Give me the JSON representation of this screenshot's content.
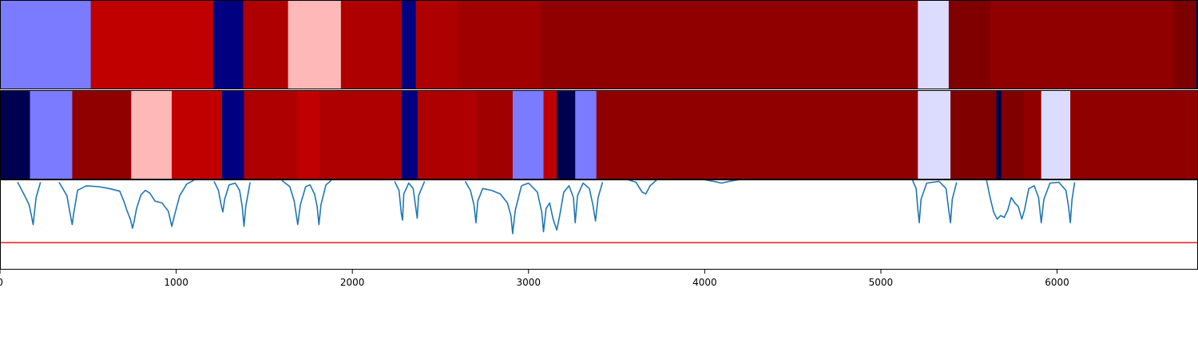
{
  "chart_data": {
    "type": "heatmap",
    "title": "",
    "xlabel": "",
    "ylabel": "",
    "xlim": [
      0,
      6800
    ],
    "x_ticks": [
      0,
      1000,
      2000,
      3000,
      4000,
      5000,
      6000
    ],
    "x_tick_labels": [
      "0",
      "1000",
      "2000",
      "3000",
      "4000",
      "5000",
      "6000"
    ],
    "tracks": [
      {
        "kind": "segments",
        "segments": [
          {
            "start": 0,
            "end": 515,
            "color": "#7b7bff"
          },
          {
            "start": 515,
            "end": 1210,
            "color": "#c00000"
          },
          {
            "start": 1210,
            "end": 1380,
            "color": "#000080"
          },
          {
            "start": 1380,
            "end": 1635,
            "color": "#ae0000"
          },
          {
            "start": 1635,
            "end": 1935,
            "color": "#ffb8b8"
          },
          {
            "start": 1935,
            "end": 2280,
            "color": "#ae0000"
          },
          {
            "start": 2280,
            "end": 2360,
            "color": "#000080"
          },
          {
            "start": 2360,
            "end": 2595,
            "color": "#ae0000"
          },
          {
            "start": 2595,
            "end": 3070,
            "color": "#a00000"
          },
          {
            "start": 3070,
            "end": 5210,
            "color": "#900000"
          },
          {
            "start": 5210,
            "end": 5385,
            "color": "#dcdcff"
          },
          {
            "start": 5385,
            "end": 5620,
            "color": "#800000"
          },
          {
            "start": 5620,
            "end": 6660,
            "color": "#900000"
          },
          {
            "start": 6660,
            "end": 6790,
            "color": "#7c0000"
          },
          {
            "start": 6790,
            "end": 6800,
            "color": "#000060"
          }
        ]
      },
      {
        "kind": "segments",
        "segments": [
          {
            "start": 0,
            "end": 170,
            "color": "#000050"
          },
          {
            "start": 170,
            "end": 410,
            "color": "#7b7bff"
          },
          {
            "start": 410,
            "end": 745,
            "color": "#900000"
          },
          {
            "start": 745,
            "end": 975,
            "color": "#ffb8b8"
          },
          {
            "start": 975,
            "end": 1260,
            "color": "#c00000"
          },
          {
            "start": 1260,
            "end": 1385,
            "color": "#000080"
          },
          {
            "start": 1385,
            "end": 1690,
            "color": "#ae0000"
          },
          {
            "start": 1690,
            "end": 1810,
            "color": "#c00000"
          },
          {
            "start": 1810,
            "end": 2280,
            "color": "#ae0000"
          },
          {
            "start": 2280,
            "end": 2370,
            "color": "#000080"
          },
          {
            "start": 2370,
            "end": 2710,
            "color": "#ae0000"
          },
          {
            "start": 2710,
            "end": 2910,
            "color": "#a00000"
          },
          {
            "start": 2910,
            "end": 3085,
            "color": "#7b7bff"
          },
          {
            "start": 3085,
            "end": 3160,
            "color": "#c00000"
          },
          {
            "start": 3160,
            "end": 3265,
            "color": "#000050"
          },
          {
            "start": 3265,
            "end": 3385,
            "color": "#7b7bff"
          },
          {
            "start": 3385,
            "end": 5210,
            "color": "#900000"
          },
          {
            "start": 5210,
            "end": 5395,
            "color": "#dcdcff"
          },
          {
            "start": 5395,
            "end": 5655,
            "color": "#800000"
          },
          {
            "start": 5655,
            "end": 5685,
            "color": "#000050"
          },
          {
            "start": 5685,
            "end": 5810,
            "color": "#800000"
          },
          {
            "start": 5810,
            "end": 5910,
            "color": "#900000"
          },
          {
            "start": 5910,
            "end": 6075,
            "color": "#dcdcff"
          },
          {
            "start": 6075,
            "end": 6800,
            "color": "#900000"
          }
        ]
      }
    ],
    "signal": {
      "color": "#1f77b4",
      "ylim": [
        0,
        1
      ],
      "baseline": 1.0,
      "dips": [
        {
          "start": 100,
          "end": 230,
          "points": [
            [
              100,
              0.97
            ],
            [
              140,
              0.82
            ],
            [
              165,
              0.72
            ],
            [
              178,
              0.6
            ],
            [
              188,
              0.5
            ],
            [
              195,
              0.62
            ],
            [
              205,
              0.8
            ],
            [
              230,
              0.97
            ]
          ]
        },
        {
          "start": 335,
          "end": 760,
          "points": [
            [
              335,
              0.97
            ],
            [
              380,
              0.82
            ],
            [
              398,
              0.62
            ],
            [
              410,
              0.5
            ],
            [
              418,
              0.62
            ],
            [
              440,
              0.88
            ],
            [
              490,
              0.93
            ],
            [
              560,
              0.92
            ],
            [
              620,
              0.9
            ],
            [
              680,
              0.87
            ],
            [
              705,
              0.75
            ],
            [
              720,
              0.66
            ],
            [
              740,
              0.56
            ],
            [
              752,
              0.46
            ],
            [
              760,
              0.52
            ]
          ]
        },
        {
          "start": 760,
          "end": 1100,
          "points": [
            [
              760,
              0.52
            ],
            [
              775,
              0.68
            ],
            [
              800,
              0.83
            ],
            [
              825,
              0.88
            ],
            [
              850,
              0.85
            ],
            [
              880,
              0.76
            ],
            [
              920,
              0.74
            ],
            [
              955,
              0.65
            ],
            [
              975,
              0.48
            ],
            [
              990,
              0.6
            ],
            [
              1020,
              0.82
            ],
            [
              1060,
              0.95
            ],
            [
              1100,
              0.99
            ]
          ]
        },
        {
          "start": 1215,
          "end": 1420,
          "points": [
            [
              1215,
              0.98
            ],
            [
              1240,
              0.88
            ],
            [
              1255,
              0.72
            ],
            [
              1265,
              0.64
            ],
            [
              1275,
              0.78
            ],
            [
              1300,
              0.94
            ],
            [
              1335,
              0.96
            ],
            [
              1360,
              0.88
            ],
            [
              1375,
              0.7
            ],
            [
              1385,
              0.48
            ],
            [
              1395,
              0.7
            ],
            [
              1420,
              0.97
            ]
          ]
        },
        {
          "start": 1600,
          "end": 1880,
          "points": [
            [
              1600,
              0.99
            ],
            [
              1645,
              0.92
            ],
            [
              1670,
              0.76
            ],
            [
              1690,
              0.5
            ],
            [
              1705,
              0.72
            ],
            [
              1735,
              0.92
            ],
            [
              1760,
              0.94
            ],
            [
              1785,
              0.84
            ],
            [
              1800,
              0.7
            ],
            [
              1810,
              0.5
            ],
            [
              1822,
              0.72
            ],
            [
              1850,
              0.94
            ],
            [
              1880,
              0.99
            ]
          ]
        },
        {
          "start": 2240,
          "end": 2410,
          "points": [
            [
              2240,
              0.98
            ],
            [
              2265,
              0.88
            ],
            [
              2278,
              0.62
            ],
            [
              2285,
              0.55
            ],
            [
              2292,
              0.84
            ],
            [
              2320,
              0.96
            ],
            [
              2345,
              0.9
            ],
            [
              2358,
              0.72
            ],
            [
              2368,
              0.57
            ],
            [
              2376,
              0.82
            ],
            [
              2410,
              0.98
            ]
          ]
        },
        {
          "start": 2640,
          "end": 2960,
          "points": [
            [
              2640,
              0.98
            ],
            [
              2670,
              0.88
            ],
            [
              2690,
              0.72
            ],
            [
              2702,
              0.52
            ],
            [
              2712,
              0.76
            ],
            [
              2740,
              0.9
            ],
            [
              2790,
              0.88
            ],
            [
              2840,
              0.84
            ],
            [
              2880,
              0.74
            ],
            [
              2900,
              0.6
            ],
            [
              2910,
              0.4
            ],
            [
              2925,
              0.66
            ],
            [
              2960,
              0.93
            ]
          ]
        },
        {
          "start": 2960,
          "end": 3200,
          "points": [
            [
              2960,
              0.93
            ],
            [
              3000,
              0.96
            ],
            [
              3050,
              0.86
            ],
            [
              3075,
              0.64
            ],
            [
              3085,
              0.42
            ],
            [
              3100,
              0.68
            ],
            [
              3120,
              0.74
            ],
            [
              3140,
              0.56
            ],
            [
              3160,
              0.44
            ],
            [
              3175,
              0.58
            ],
            [
              3200,
              0.86
            ]
          ]
        },
        {
          "start": 3200,
          "end": 3420,
          "points": [
            [
              3200,
              0.86
            ],
            [
              3230,
              0.93
            ],
            [
              3255,
              0.8
            ],
            [
              3265,
              0.52
            ],
            [
              3278,
              0.82
            ],
            [
              3310,
              0.96
            ],
            [
              3345,
              0.9
            ],
            [
              3365,
              0.72
            ],
            [
              3380,
              0.54
            ],
            [
              3395,
              0.8
            ],
            [
              3420,
              0.97
            ]
          ]
        },
        {
          "start": 3560,
          "end": 3730,
          "points": [
            [
              3560,
              1.0
            ],
            [
              3610,
              0.97
            ],
            [
              3645,
              0.86
            ],
            [
              3665,
              0.84
            ],
            [
              3690,
              0.93
            ],
            [
              3730,
              1.0
            ]
          ]
        },
        {
          "start": 3990,
          "end": 4200,
          "points": [
            [
              3990,
              1.0
            ],
            [
              4050,
              0.98
            ],
            [
              4095,
              0.96
            ],
            [
              4140,
              0.98
            ],
            [
              4200,
              1.0
            ]
          ]
        },
        {
          "start": 5180,
          "end": 5430,
          "points": [
            [
              5180,
              0.99
            ],
            [
              5200,
              0.9
            ],
            [
              5210,
              0.66
            ],
            [
              5218,
              0.52
            ],
            [
              5228,
              0.78
            ],
            [
              5260,
              0.96
            ],
            [
              5330,
              0.98
            ],
            [
              5370,
              0.9
            ],
            [
              5385,
              0.66
            ],
            [
              5395,
              0.52
            ],
            [
              5405,
              0.78
            ],
            [
              5430,
              0.97
            ]
          ]
        },
        {
          "start": 5600,
          "end": 5780,
          "points": [
            [
              5600,
              0.99
            ],
            [
              5620,
              0.8
            ],
            [
              5640,
              0.64
            ],
            [
              5660,
              0.56
            ],
            [
              5680,
              0.6
            ],
            [
              5700,
              0.58
            ],
            [
              5720,
              0.66
            ],
            [
              5740,
              0.8
            ],
            [
              5760,
              0.74
            ],
            [
              5780,
              0.7
            ]
          ]
        },
        {
          "start": 5780,
          "end": 6100,
          "points": [
            [
              5780,
              0.7
            ],
            [
              5800,
              0.56
            ],
            [
              5815,
              0.66
            ],
            [
              5840,
              0.9
            ],
            [
              5870,
              0.93
            ],
            [
              5895,
              0.8
            ],
            [
              5910,
              0.52
            ],
            [
              5925,
              0.78
            ],
            [
              5960,
              0.96
            ],
            [
              6010,
              0.97
            ],
            [
              6050,
              0.88
            ],
            [
              6065,
              0.7
            ],
            [
              6075,
              0.52
            ],
            [
              6085,
              0.78
            ],
            [
              6100,
              0.97
            ]
          ]
        }
      ]
    },
    "threshold": {
      "value": 0.3,
      "color": "#e41a1c"
    }
  }
}
